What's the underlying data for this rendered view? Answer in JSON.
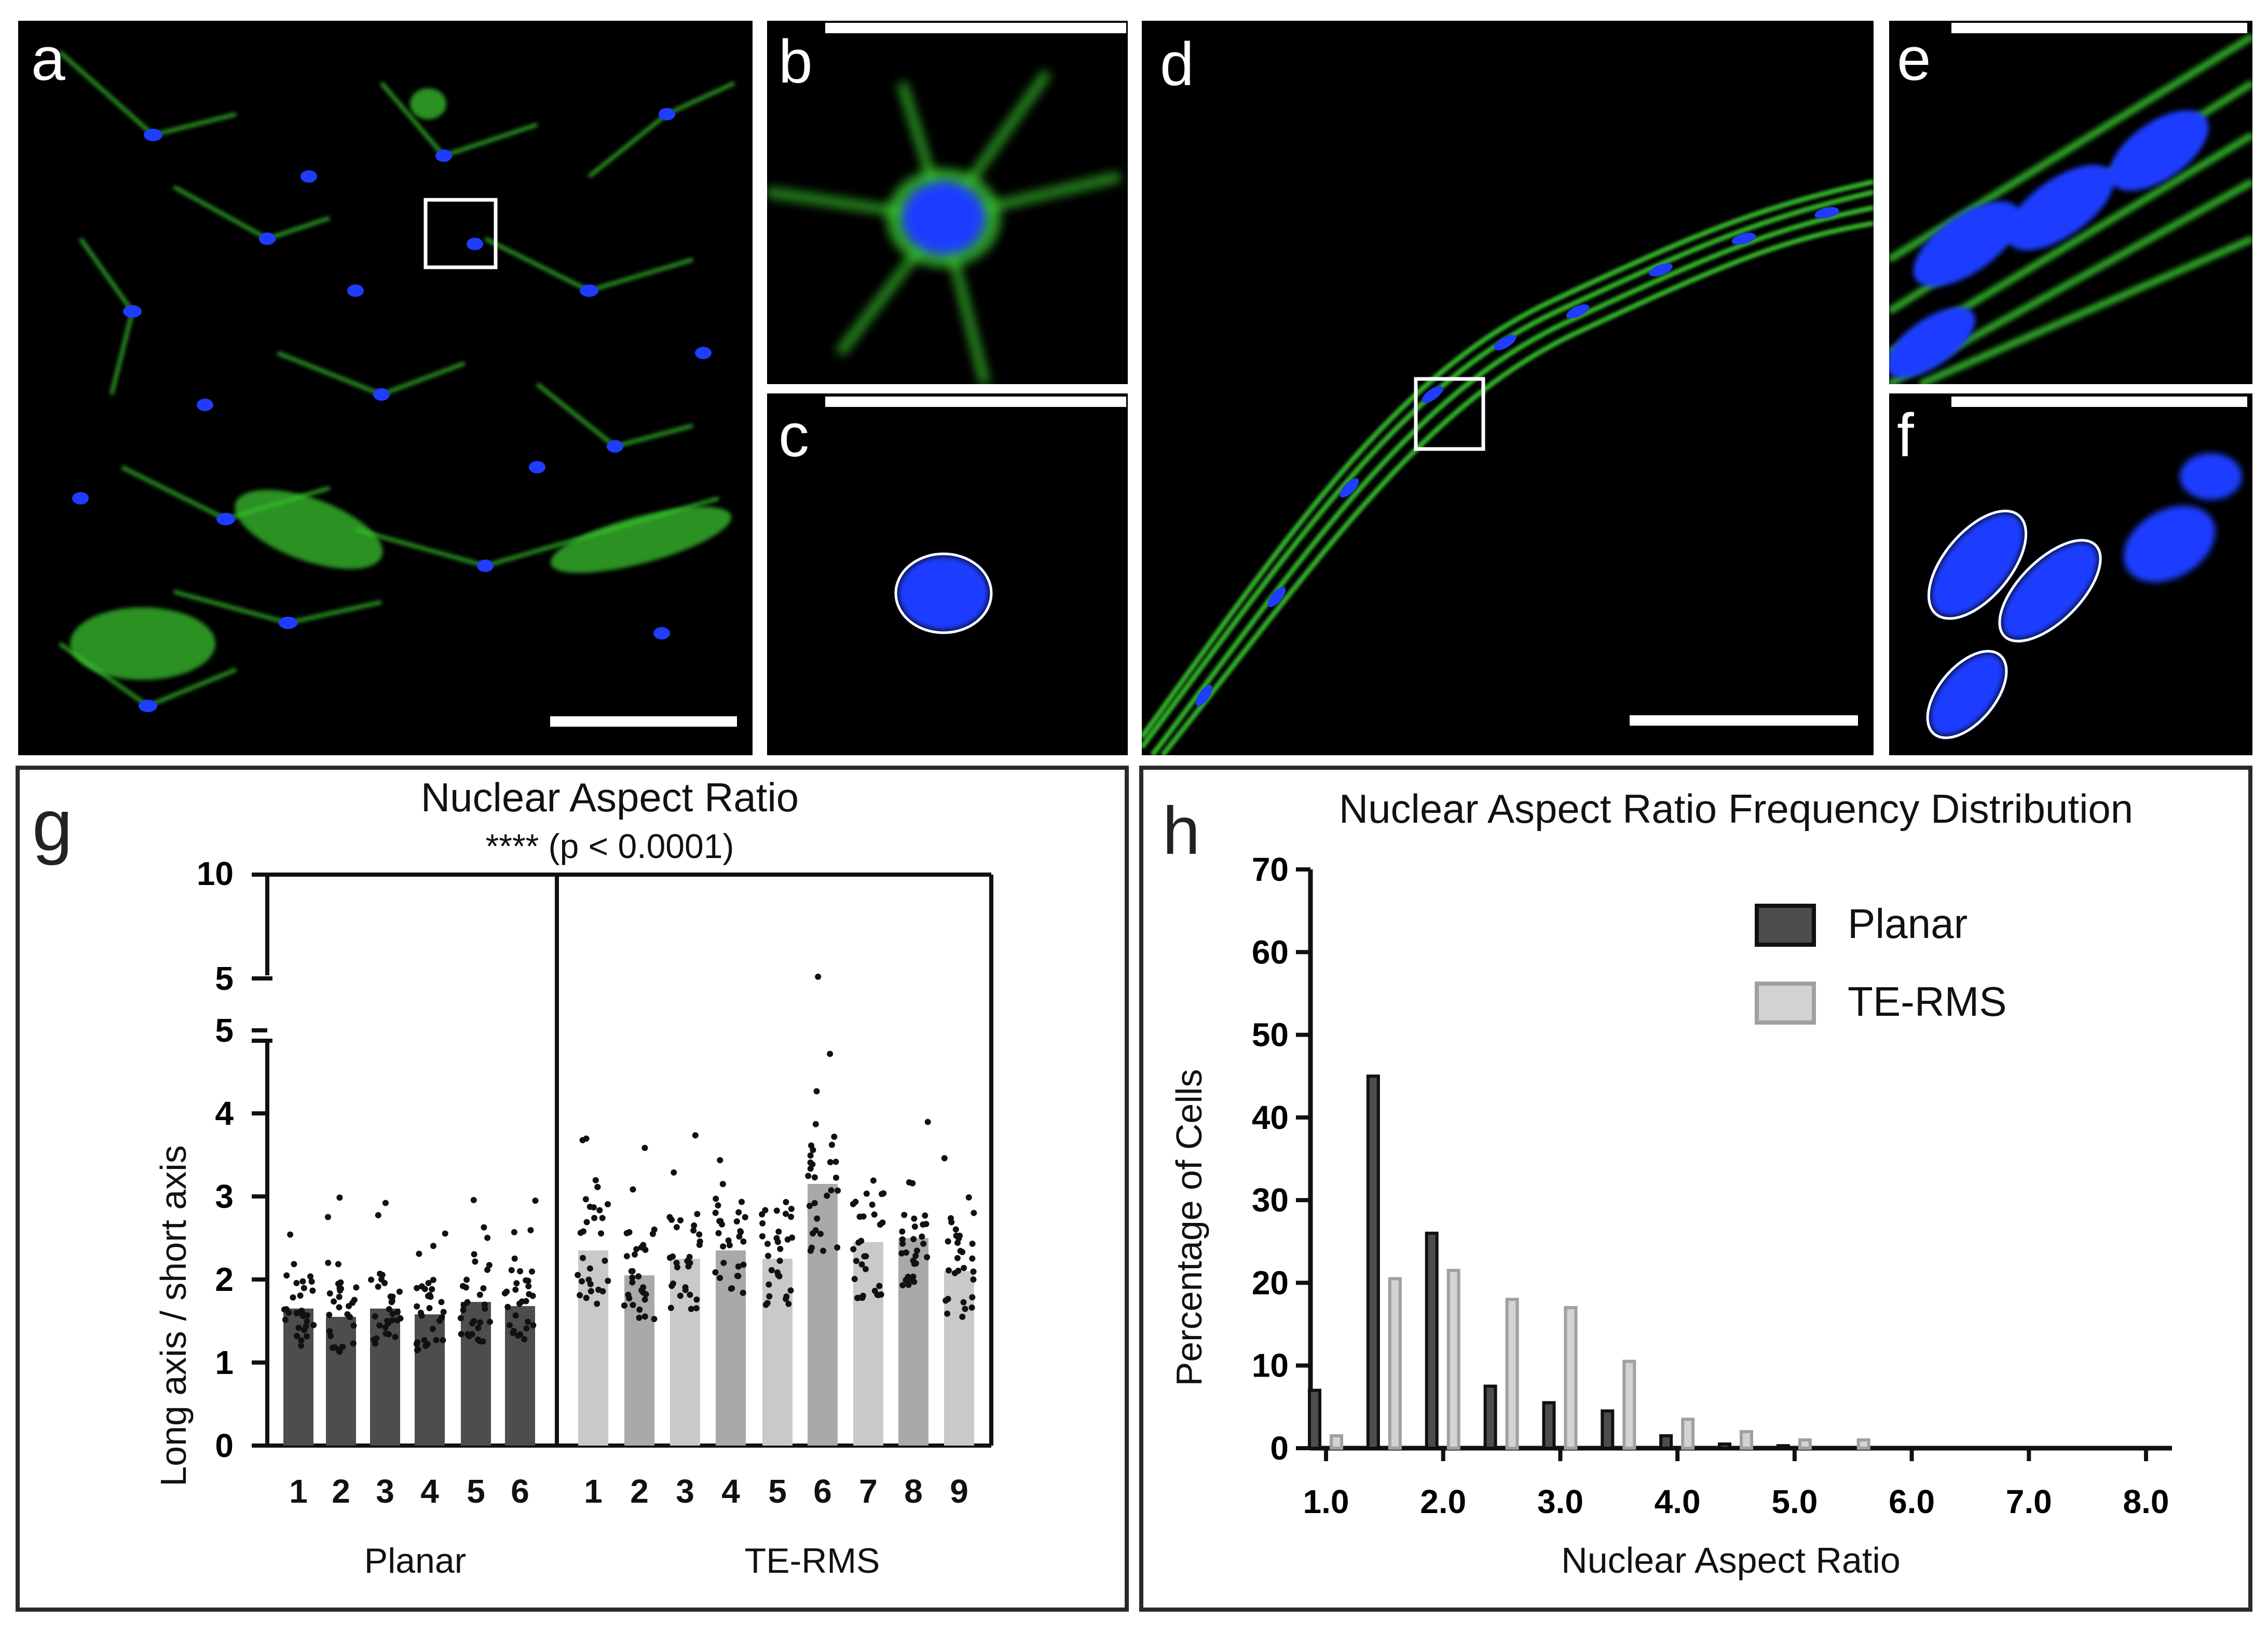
{
  "panel_labels": {
    "a": "a",
    "b": "b",
    "c": "c",
    "d": "d",
    "e": "e",
    "f": "f",
    "g": "g",
    "h": "h"
  },
  "colors": {
    "green": "#37c22f",
    "blue": "#1f3cff",
    "planar_bar": "#4d4d4d",
    "te_bar": "#c9c9c9",
    "te_bar_alt": "#a9a9a9"
  },
  "chart_g": {
    "title": "Nuclear Aspect Ratio",
    "subtitle": "**** (p < 0.0001)",
    "ylabel": "Long axis / short axis",
    "group_labels": [
      "Planar",
      "TE-RMS"
    ],
    "y_ticks_lower": [
      "0",
      "1",
      "2",
      "3",
      "4",
      "5"
    ],
    "y_ticks_upper": [
      "5",
      "10"
    ]
  },
  "chart_h": {
    "title": "Nuclear Aspect Ratio Frequency Distribution",
    "xlabel": "Nuclear Aspect Ratio",
    "ylabel": "Percentage of Cells",
    "legend": [
      "Planar",
      "TE-RMS"
    ],
    "y_ticks": [
      "0",
      "10",
      "20",
      "30",
      "40",
      "50",
      "60",
      "70"
    ],
    "x_ticks": [
      "1.0",
      "2.0",
      "3.0",
      "4.0",
      "5.0",
      "6.0",
      "7.0",
      "8.0"
    ]
  },
  "chart_data": [
    {
      "type": "bar",
      "panel": "g",
      "title": "Nuclear Aspect Ratio",
      "subtitle": "**** (p < 0.0001)",
      "ylabel": "Long axis / short axis",
      "ylim": [
        0,
        10
      ],
      "y_axis_break": [
        5,
        5
      ],
      "groups": [
        {
          "name": "Planar",
          "categories": [
            "1",
            "2",
            "3",
            "4",
            "5",
            "6"
          ],
          "values": [
            1.65,
            1.55,
            1.65,
            1.58,
            1.73,
            1.68
          ]
        },
        {
          "name": "TE-RMS",
          "categories": [
            "1",
            "2",
            "3",
            "4",
            "5",
            "6",
            "7",
            "8",
            "9"
          ],
          "values": [
            2.35,
            2.05,
            2.25,
            2.35,
            2.25,
            3.15,
            2.45,
            2.5,
            2.1
          ]
        }
      ]
    },
    {
      "type": "bar",
      "panel": "h",
      "title": "Nuclear Aspect Ratio Frequency Distribution",
      "xlabel": "Nuclear Aspect Ratio",
      "ylabel": "Percentage of Cells",
      "ylim": [
        0,
        70
      ],
      "xlim": [
        1.0,
        8.0
      ],
      "legend_position": "top-right",
      "x": [
        1.0,
        1.5,
        2.0,
        2.5,
        3.0,
        3.5,
        4.0,
        4.5,
        5.0,
        5.5
      ],
      "series": [
        {
          "name": "Planar",
          "values": [
            7,
            45,
            26,
            7.5,
            5.5,
            4.5,
            1.5,
            0.5,
            0.3,
            0
          ]
        },
        {
          "name": "TE-RMS",
          "values": [
            1.5,
            20.5,
            21.5,
            18,
            17,
            10.5,
            3.5,
            2,
            1,
            1
          ]
        }
      ]
    }
  ]
}
